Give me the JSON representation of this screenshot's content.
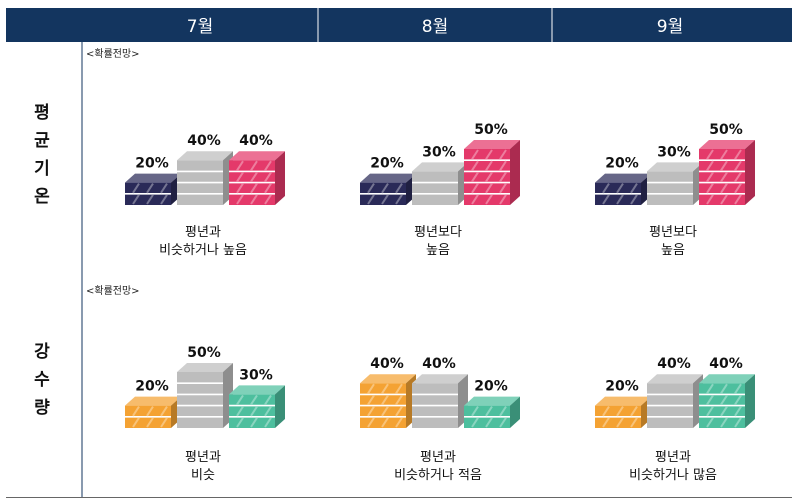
{
  "header": {
    "months": [
      "7월",
      "8월",
      "9월"
    ]
  },
  "colors": {
    "header_bg": "#13355f",
    "header_text": "#ffffff",
    "below": "#2a2a58",
    "near": "#bdbdbd",
    "above_temp": "#e4396a",
    "below_rain": "#f4a233",
    "above_rain": "#4dbf9e"
  },
  "chart_data": [
    {
      "type": "bar",
      "row_label": "평균기온",
      "note": "<확률전망>",
      "series": [
        {
          "values": [
            20,
            20,
            20
          ]
        },
        {
          "values": [
            40,
            30,
            30
          ]
        },
        {
          "values": [
            40,
            50,
            50
          ]
        }
      ],
      "categories": [
        "7월",
        "8월",
        "9월"
      ],
      "captions": [
        [
          "평년과",
          "비슷하거나 높음"
        ],
        [
          "평년보다",
          "높음"
        ],
        [
          "평년보다",
          "높음"
        ]
      ],
      "value_labels": [
        [
          "20%",
          "40%",
          "40%"
        ],
        [
          "20%",
          "30%",
          "50%"
        ],
        [
          "20%",
          "30%",
          "50%"
        ]
      ]
    },
    {
      "type": "bar",
      "row_label": "강수량",
      "note": "<확률전망>",
      "series": [
        {
          "values": [
            20,
            40,
            20
          ]
        },
        {
          "values": [
            50,
            40,
            40
          ]
        },
        {
          "values": [
            30,
            20,
            40
          ]
        }
      ],
      "categories": [
        "7월",
        "8월",
        "9월"
      ],
      "captions": [
        [
          "평년과",
          "비슷"
        ],
        [
          "평년과",
          "비슷하거나 적음"
        ],
        [
          "평년과",
          "비슷하거나 많음"
        ]
      ],
      "value_labels": [
        [
          "20%",
          "50%",
          "30%"
        ],
        [
          "40%",
          "40%",
          "20%"
        ],
        [
          "20%",
          "40%",
          "40%"
        ]
      ]
    }
  ]
}
